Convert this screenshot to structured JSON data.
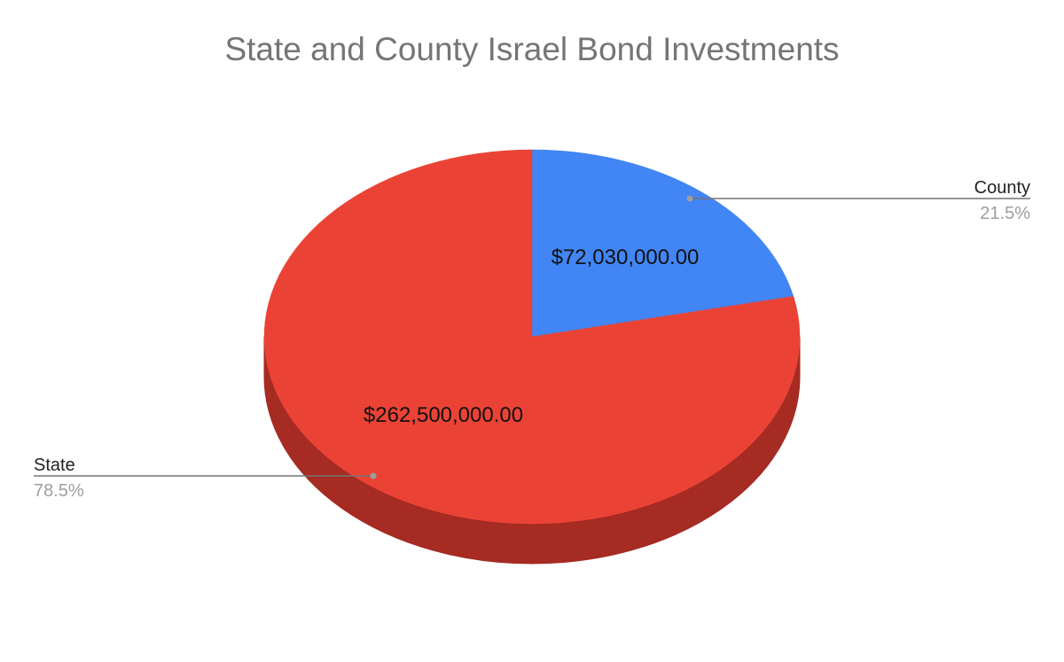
{
  "chart_data": {
    "type": "pie",
    "title": "State and County Israel Bond Investments",
    "three_d": true,
    "slices": [
      {
        "label": "County",
        "value": 72030000,
        "value_label": "$72,030,000.00",
        "percent_label": "21.5%",
        "color": "#4285f4",
        "side_color": "#2f65c0"
      },
      {
        "label": "State",
        "value": 262500000,
        "value_label": "$262,500,000.00",
        "percent_label": "78.5%",
        "color": "#ea4335",
        "side_color": "#a52b23"
      }
    ]
  },
  "colors": {
    "title": "#757575",
    "label": "#222222",
    "percent": "#9e9e9e",
    "leader": "#757575"
  }
}
